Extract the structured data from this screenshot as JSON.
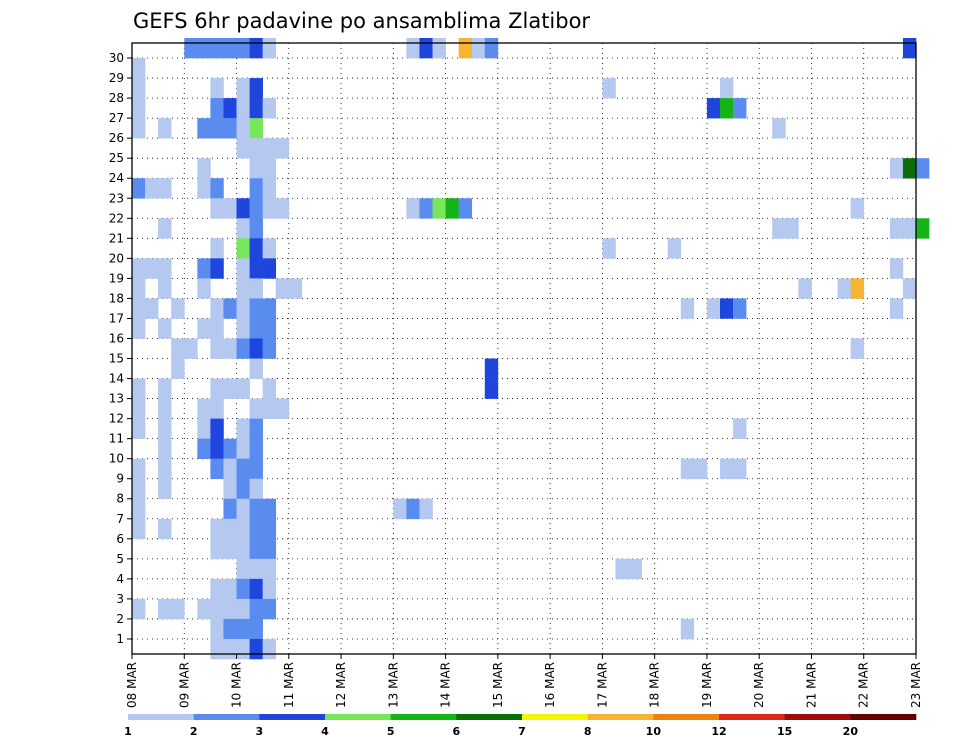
{
  "chart_data": {
    "type": "heatmap",
    "title": "GEFS 6hr padavine po ansamblima Zlatibor",
    "y_ticks": [
      "1",
      "2",
      "3",
      "4",
      "5",
      "6",
      "7",
      "8",
      "9",
      "10",
      "11",
      "12",
      "13",
      "14",
      "15",
      "16",
      "17",
      "18",
      "19",
      "20",
      "21",
      "22",
      "23",
      "24",
      "25",
      "26",
      "27",
      "28",
      "29",
      "30"
    ],
    "x_ticks": [
      "08 MAR",
      "09 MAR",
      "10 MAR",
      "11 MAR",
      "12 MAR",
      "13 MAR",
      "14 MAR",
      "15 MAR",
      "16 MAR",
      "17 MAR",
      "18 MAR",
      "19 MAR",
      "20 MAR",
      "21 MAR",
      "22 MAR",
      "23 MAR"
    ],
    "time_steps_per_day": 4,
    "colorbar": {
      "labels": [
        "1",
        "2",
        "3",
        "4",
        "5",
        "6",
        "7",
        "8",
        "10",
        "12",
        "15",
        "20"
      ],
      "colors": [
        "#b4c8f0",
        "#5a8cf0",
        "#1e46dc",
        "#78e65a",
        "#14b414",
        "#0a6e0a",
        "#f5f50a",
        "#f5b432",
        "#f08214",
        "#dc2814",
        "#a00a0a",
        "#640000"
      ]
    },
    "cells": [
      {
        "m": 30,
        "t": [
          [
            4,
            1
          ],
          [
            5,
            1
          ],
          [
            6,
            1
          ],
          [
            7,
            1
          ],
          [
            8,
            1
          ],
          [
            9,
            2
          ],
          [
            10,
            0
          ],
          [
            21,
            0
          ],
          [
            22,
            2
          ],
          [
            23,
            0
          ],
          [
            25,
            7
          ],
          [
            26,
            0
          ],
          [
            27,
            1
          ],
          [
            59,
            2
          ]
        ]
      },
      {
        "m": 29,
        "t": [
          [
            0,
            0
          ]
        ]
      },
      {
        "m": 28,
        "t": [
          [
            0,
            0
          ],
          [
            6,
            0
          ],
          [
            8,
            0
          ],
          [
            9,
            2
          ],
          [
            36,
            0
          ],
          [
            45,
            0
          ]
        ]
      },
      {
        "m": 27,
        "t": [
          [
            0,
            0
          ],
          [
            6,
            1
          ],
          [
            7,
            2
          ],
          [
            8,
            0
          ],
          [
            9,
            2
          ],
          [
            10,
            0
          ],
          [
            44,
            2
          ],
          [
            45,
            4
          ],
          [
            46,
            1
          ]
        ]
      },
      {
        "m": 26,
        "t": [
          [
            0,
            0
          ],
          [
            2,
            0
          ],
          [
            5,
            1
          ],
          [
            6,
            1
          ],
          [
            7,
            1
          ],
          [
            8,
            0
          ],
          [
            9,
            3
          ],
          [
            49,
            0
          ]
        ]
      },
      {
        "m": 25,
        "t": [
          [
            8,
            0
          ],
          [
            9,
            0
          ],
          [
            10,
            0
          ],
          [
            11,
            0
          ]
        ]
      },
      {
        "m": 24,
        "t": [
          [
            5,
            0
          ],
          [
            9,
            0
          ],
          [
            10,
            0
          ],
          [
            58,
            0
          ],
          [
            59,
            5
          ],
          [
            60,
            1
          ]
        ]
      },
      {
        "m": 23,
        "t": [
          [
            0,
            1
          ],
          [
            1,
            0
          ],
          [
            2,
            0
          ],
          [
            5,
            0
          ],
          [
            6,
            1
          ],
          [
            9,
            1
          ],
          [
            10,
            0
          ]
        ]
      },
      {
        "m": 22,
        "t": [
          [
            6,
            0
          ],
          [
            7,
            0
          ],
          [
            8,
            2
          ],
          [
            9,
            1
          ],
          [
            10,
            0
          ],
          [
            11,
            0
          ],
          [
            21,
            0
          ],
          [
            22,
            1
          ],
          [
            23,
            3
          ],
          [
            24,
            4
          ],
          [
            25,
            1
          ],
          [
            55,
            0
          ]
        ]
      },
      {
        "m": 21,
        "t": [
          [
            2,
            0
          ],
          [
            8,
            0
          ],
          [
            9,
            1
          ],
          [
            49,
            0
          ],
          [
            50,
            0
          ],
          [
            58,
            0
          ],
          [
            59,
            0
          ],
          [
            60,
            4
          ]
        ]
      },
      {
        "m": 20,
        "t": [
          [
            6,
            0
          ],
          [
            8,
            3
          ],
          [
            9,
            2
          ],
          [
            10,
            0
          ],
          [
            36,
            0
          ],
          [
            41,
            0
          ]
        ]
      },
      {
        "m": 19,
        "t": [
          [
            0,
            0
          ],
          [
            1,
            0
          ],
          [
            2,
            0
          ],
          [
            5,
            1
          ],
          [
            6,
            2
          ],
          [
            8,
            0
          ],
          [
            9,
            2
          ],
          [
            10,
            2
          ],
          [
            58,
            0
          ]
        ]
      },
      {
        "m": 18,
        "t": [
          [
            0,
            0
          ],
          [
            2,
            0
          ],
          [
            5,
            0
          ],
          [
            8,
            0
          ],
          [
            9,
            0
          ],
          [
            11,
            0
          ],
          [
            12,
            0
          ],
          [
            51,
            0
          ],
          [
            54,
            0
          ],
          [
            55,
            7
          ],
          [
            59,
            0
          ]
        ]
      },
      {
        "m": 17,
        "t": [
          [
            0,
            0
          ],
          [
            1,
            0
          ],
          [
            3,
            0
          ],
          [
            6,
            0
          ],
          [
            7,
            1
          ],
          [
            8,
            0
          ],
          [
            9,
            1
          ],
          [
            10,
            1
          ],
          [
            42,
            0
          ],
          [
            44,
            0
          ],
          [
            45,
            2
          ],
          [
            46,
            1
          ],
          [
            58,
            0
          ]
        ]
      },
      {
        "m": 16,
        "t": [
          [
            0,
            0
          ],
          [
            2,
            0
          ],
          [
            5,
            0
          ],
          [
            6,
            0
          ],
          [
            8,
            0
          ],
          [
            9,
            1
          ],
          [
            10,
            1
          ]
        ]
      },
      {
        "m": 15,
        "t": [
          [
            3,
            0
          ],
          [
            4,
            0
          ],
          [
            6,
            0
          ],
          [
            7,
            0
          ],
          [
            8,
            1
          ],
          [
            9,
            2
          ],
          [
            10,
            1
          ],
          [
            55,
            0
          ]
        ]
      },
      {
        "m": 14,
        "t": [
          [
            3,
            0
          ],
          [
            9,
            0
          ],
          [
            27,
            2
          ]
        ]
      },
      {
        "m": 13,
        "t": [
          [
            0,
            0
          ],
          [
            2,
            0
          ],
          [
            6,
            0
          ],
          [
            7,
            0
          ],
          [
            8,
            0
          ],
          [
            10,
            0
          ],
          [
            27,
            2
          ]
        ]
      },
      {
        "m": 12,
        "t": [
          [
            0,
            0
          ],
          [
            2,
            0
          ],
          [
            5,
            0
          ],
          [
            6,
            0
          ],
          [
            9,
            0
          ],
          [
            10,
            0
          ],
          [
            11,
            0
          ]
        ]
      },
      {
        "m": 11,
        "t": [
          [
            0,
            0
          ],
          [
            2,
            0
          ],
          [
            5,
            0
          ],
          [
            6,
            2
          ],
          [
            8,
            0
          ],
          [
            9,
            1
          ],
          [
            46,
            0
          ]
        ]
      },
      {
        "m": 10,
        "t": [
          [
            2,
            0
          ],
          [
            5,
            1
          ],
          [
            6,
            2
          ],
          [
            7,
            1
          ],
          [
            8,
            0
          ],
          [
            9,
            1
          ]
        ]
      },
      {
        "m": 9,
        "t": [
          [
            0,
            0
          ],
          [
            2,
            0
          ],
          [
            6,
            1
          ],
          [
            7,
            0
          ],
          [
            8,
            1
          ],
          [
            9,
            1
          ],
          [
            42,
            0
          ],
          [
            43,
            0
          ],
          [
            45,
            0
          ],
          [
            46,
            0
          ]
        ]
      },
      {
        "m": 8,
        "t": [
          [
            0,
            0
          ],
          [
            2,
            0
          ],
          [
            7,
            0
          ],
          [
            8,
            1
          ],
          [
            9,
            0
          ]
        ]
      },
      {
        "m": 7,
        "t": [
          [
            0,
            0
          ],
          [
            7,
            1
          ],
          [
            8,
            0
          ],
          [
            9,
            1
          ],
          [
            10,
            1
          ],
          [
            20,
            0
          ],
          [
            21,
            1
          ],
          [
            22,
            0
          ]
        ]
      },
      {
        "m": 6,
        "t": [
          [
            0,
            0
          ],
          [
            2,
            0
          ],
          [
            6,
            0
          ],
          [
            7,
            0
          ],
          [
            8,
            0
          ],
          [
            9,
            1
          ],
          [
            10,
            1
          ]
        ]
      },
      {
        "m": 5,
        "t": [
          [
            6,
            0
          ],
          [
            7,
            0
          ],
          [
            8,
            0
          ],
          [
            9,
            1
          ],
          [
            10,
            1
          ]
        ]
      },
      {
        "m": 4,
        "t": [
          [
            8,
            0
          ],
          [
            9,
            0
          ],
          [
            10,
            0
          ],
          [
            37,
            0
          ],
          [
            38,
            0
          ]
        ]
      },
      {
        "m": 3,
        "t": [
          [
            6,
            0
          ],
          [
            7,
            0
          ],
          [
            8,
            1
          ],
          [
            9,
            2
          ],
          [
            10,
            0
          ]
        ]
      },
      {
        "m": 2,
        "t": [
          [
            0,
            0
          ],
          [
            2,
            0
          ],
          [
            3,
            0
          ],
          [
            5,
            0
          ],
          [
            6,
            0
          ],
          [
            7,
            0
          ],
          [
            8,
            0
          ],
          [
            9,
            1
          ],
          [
            10,
            1
          ]
        ]
      },
      {
        "m": 1,
        "t": [
          [
            6,
            0
          ],
          [
            7,
            1
          ],
          [
            8,
            1
          ],
          [
            9,
            1
          ],
          [
            42,
            0
          ]
        ]
      },
      {
        "m": 0,
        "t": [
          [
            6,
            0
          ],
          [
            7,
            0
          ],
          [
            8,
            0
          ],
          [
            9,
            2
          ],
          [
            10,
            0
          ]
        ]
      }
    ]
  }
}
